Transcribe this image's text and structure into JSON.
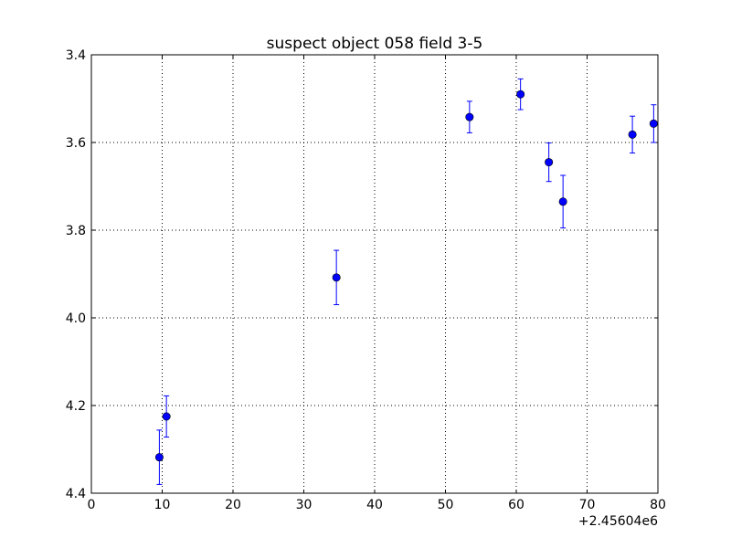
{
  "chart_data": {
    "type": "scatter",
    "title": "suspect object 058 field 3-5",
    "xlabel": "",
    "ylabel": "",
    "x_offset_label": "+2.45604e6",
    "xlim": [
      0,
      80
    ],
    "ylim": [
      3.4,
      4.4
    ],
    "y_inverted": true,
    "grid": true,
    "x_ticks": [
      "0",
      "10",
      "20",
      "30",
      "40",
      "50",
      "60",
      "70",
      "80"
    ],
    "y_ticks": [
      "3.4",
      "3.6",
      "3.8",
      "4.0",
      "4.2",
      "4.4"
    ],
    "marker_color": "#0000ff",
    "error_bar_color": "#0000ff",
    "series": [
      {
        "points": [
          {
            "x": 9.6,
            "y": 4.318,
            "err": 0.062
          },
          {
            "x": 10.6,
            "y": 4.225,
            "err": 0.047
          },
          {
            "x": 34.6,
            "y": 3.908,
            "err": 0.062
          },
          {
            "x": 53.4,
            "y": 3.542,
            "err": 0.036
          },
          {
            "x": 60.6,
            "y": 3.49,
            "err": 0.035
          },
          {
            "x": 64.6,
            "y": 3.645,
            "err": 0.044
          },
          {
            "x": 66.6,
            "y": 3.735,
            "err": 0.06
          },
          {
            "x": 76.4,
            "y": 3.582,
            "err": 0.042
          },
          {
            "x": 79.4,
            "y": 3.557,
            "err": 0.043
          }
        ]
      }
    ]
  }
}
